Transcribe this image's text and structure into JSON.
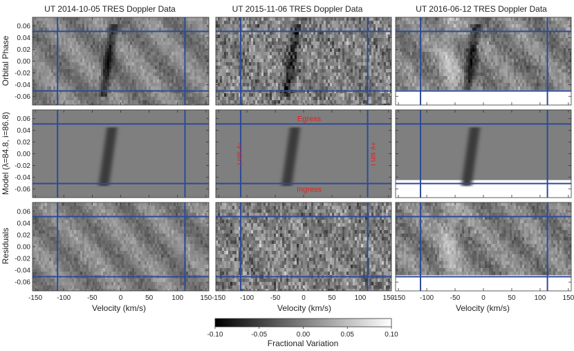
{
  "chart_data": {
    "type": "heatmap",
    "columns": [
      {
        "title": "UT 2014-10-05 TRES Doppler Data",
        "phase_max": 0.075
      },
      {
        "title": "UT 2015-11-06 TRES Doppler Data",
        "phase_max": 0.075
      },
      {
        "title": "UT 2016-06-12 TRES Doppler Data",
        "phase_max": 0.075,
        "phase_min_data": -0.045
      }
    ],
    "rows": [
      {
        "label": "Orbital Phase",
        "kind": "data"
      },
      {
        "label": "Model (λ=84.8, i=86.8)",
        "kind": "model"
      },
      {
        "label": "Residuals",
        "kind": "residual"
      }
    ],
    "x_axis": {
      "label": "Velocity (km/s)",
      "range": [
        -155,
        155
      ],
      "ticks": [
        -150,
        -100,
        -50,
        0,
        50,
        100,
        150
      ]
    },
    "y_axis": {
      "range": [
        -0.075,
        0.075
      ],
      "ticks": [
        "0.06",
        "0.04",
        "0.02",
        "0.00",
        "-0.02",
        "-0.04",
        "-0.06"
      ],
      "tick_values": [
        0.06,
        0.04,
        0.02,
        0.0,
        -0.02,
        -0.04,
        -0.06
      ]
    },
    "reference_lines": {
      "vsini_velocities": [
        -111,
        113
      ],
      "egress_phase": 0.051,
      "ingress_phase": -0.051,
      "color": "#2c4a9a"
    },
    "annotations": {
      "egress": "Egress",
      "ingress": "Ingress",
      "neg_vsini": "-v sin i",
      "pos_vsini": "+v sin i",
      "color": "#e02020"
    },
    "shadow_track": {
      "v_start": -30,
      "phase_start": -0.055,
      "v_end": -15,
      "phase_end": 0.045
    },
    "colorbar": {
      "label": "Fractional Variation",
      "range": [
        -0.1,
        0.1
      ],
      "ticks": [
        "-0.10",
        "-0.05",
        "0.00",
        "0.05",
        "0.10"
      ],
      "tick_values": [
        -0.1,
        -0.05,
        0.0,
        0.05,
        0.1
      ]
    }
  }
}
